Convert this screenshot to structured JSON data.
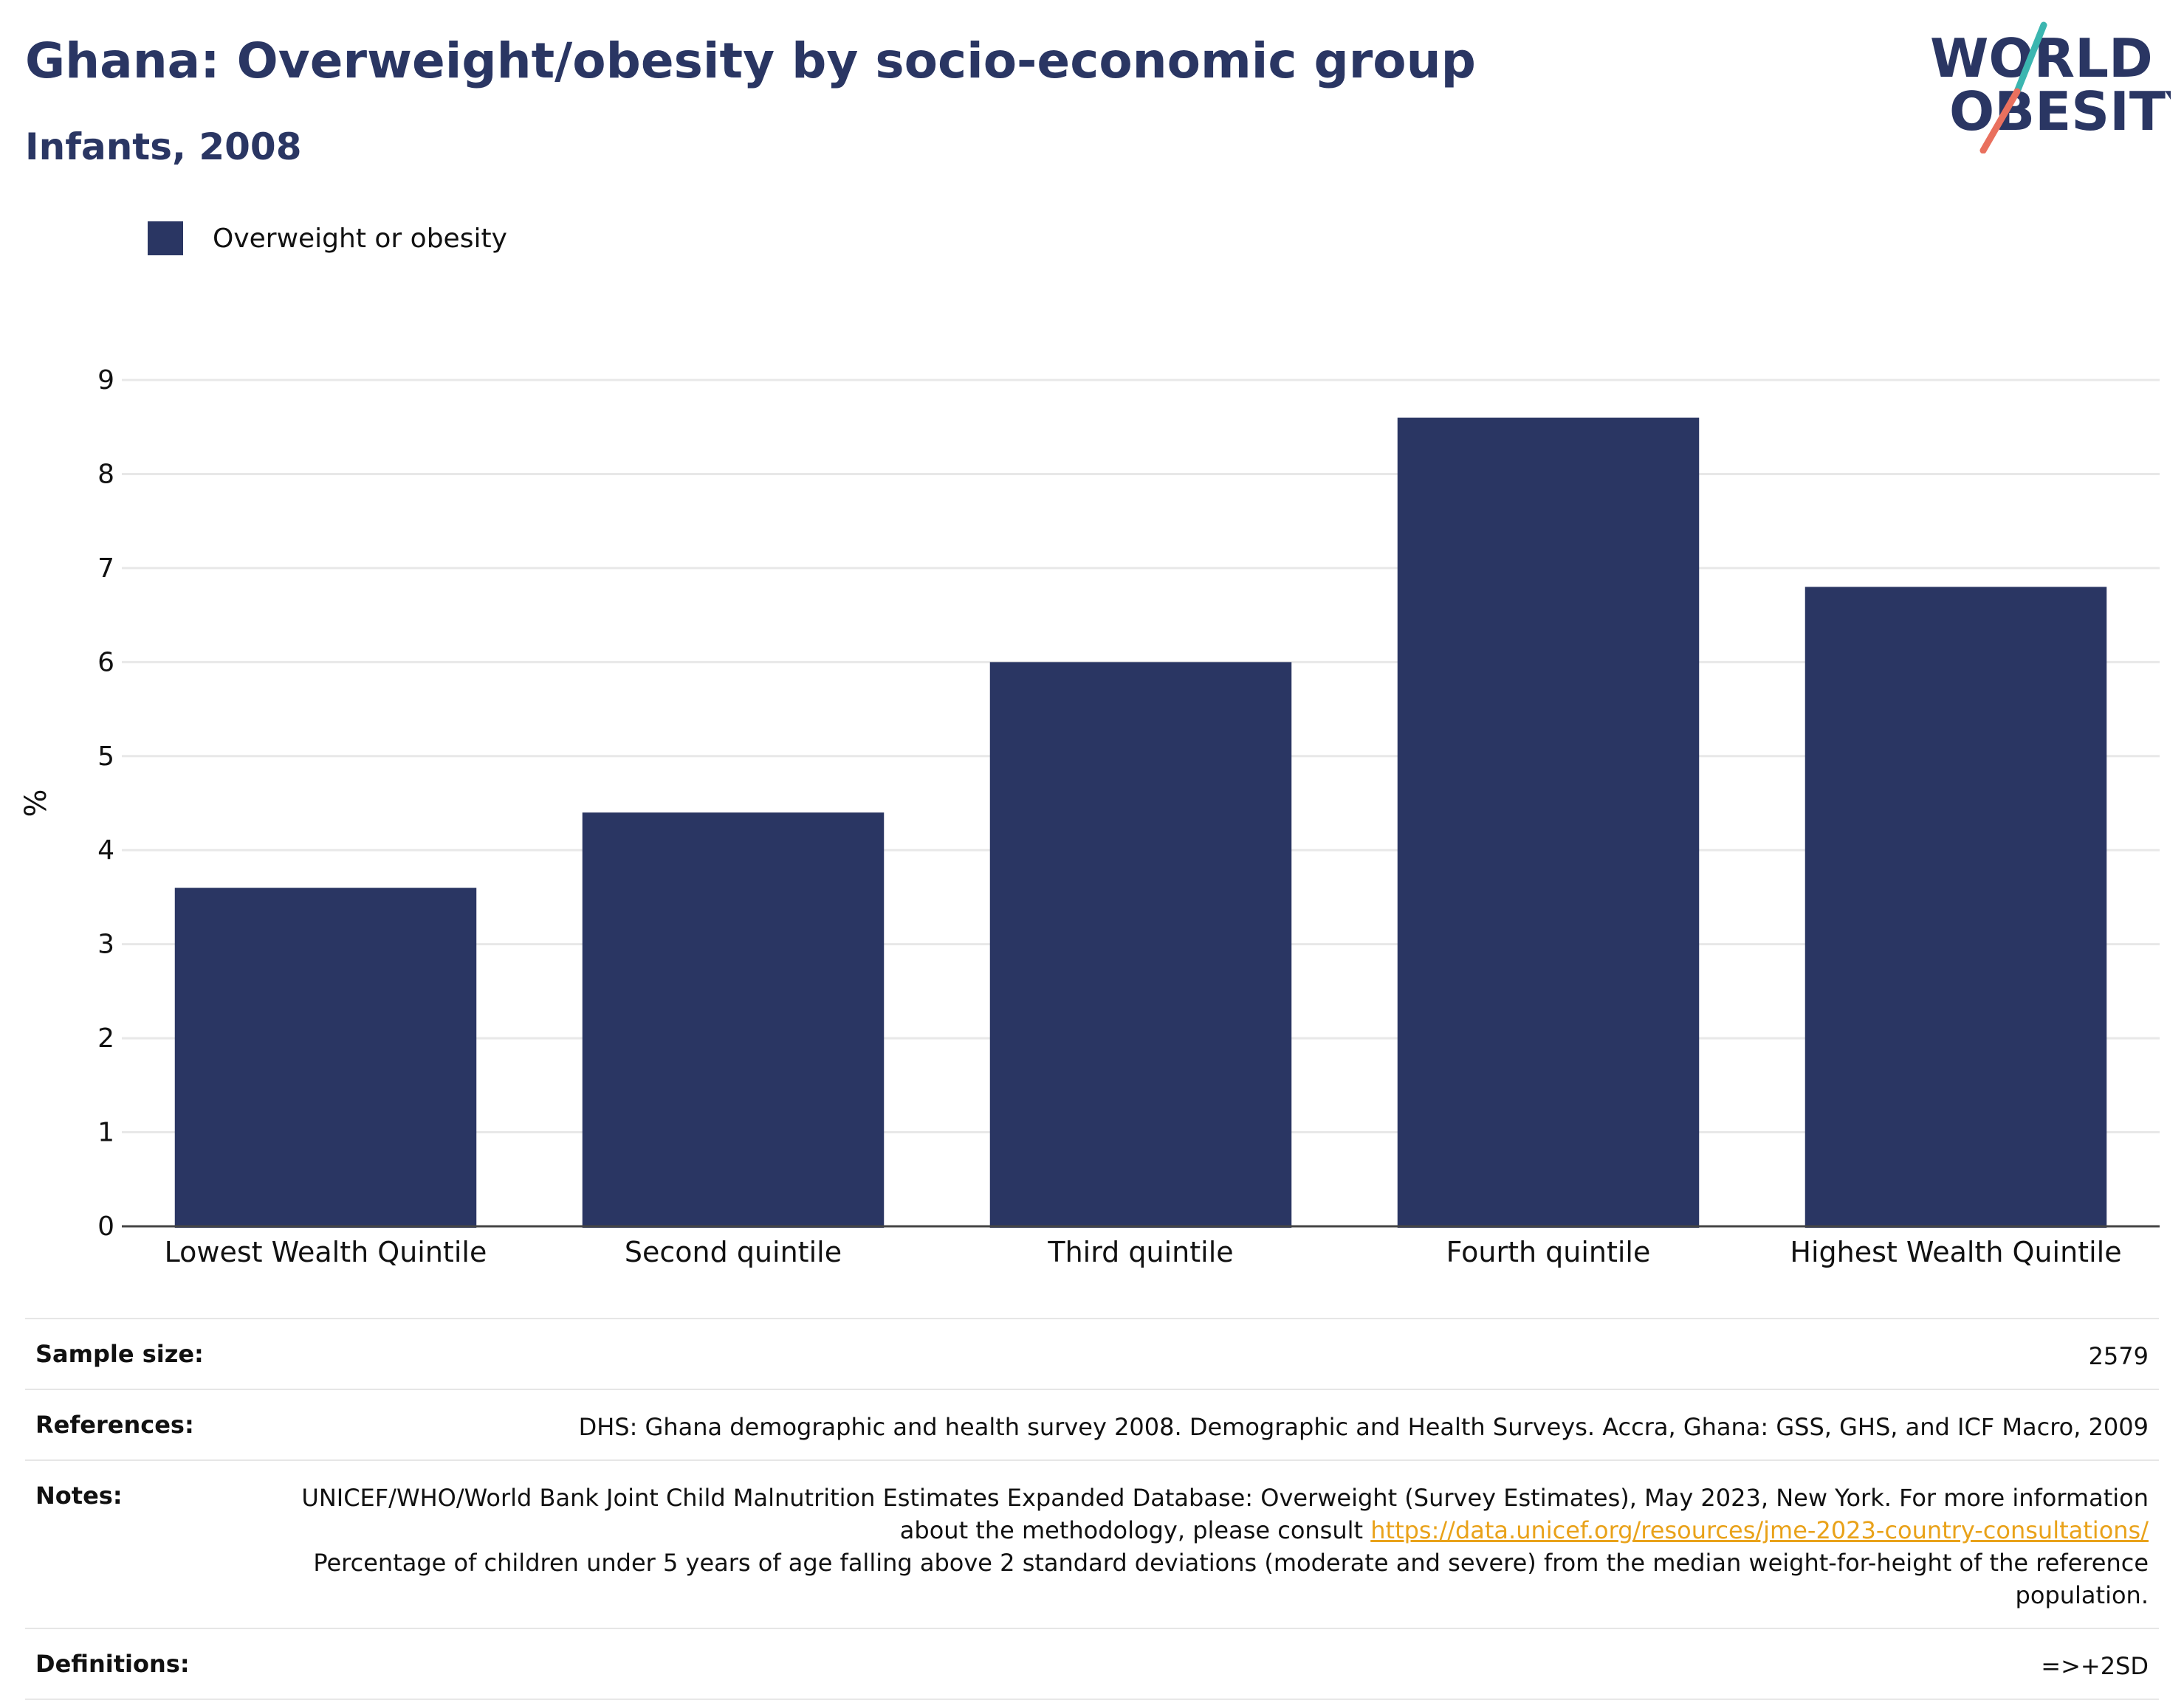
{
  "header": {
    "title": "Ghana: Overweight/obesity by socio-economic group",
    "subtitle": "Infants, 2008"
  },
  "logo": {
    "line1": "WORLD",
    "line2": "OBESITY",
    "colors": {
      "navy": "#2a3663",
      "teal": "#3bb6b0",
      "coral": "#e9705e"
    }
  },
  "legend": {
    "label": "Overweight or obesity",
    "color": "#2a3663"
  },
  "chart_data": {
    "type": "bar",
    "categories": [
      "Lowest Wealth Quintile",
      "Second quintile",
      "Third quintile",
      "Fourth quintile",
      "Highest Wealth Quintile"
    ],
    "series": [
      {
        "name": "Overweight or obesity",
        "values": [
          3.6,
          4.4,
          6.0,
          8.6,
          6.8
        ],
        "color": "#2a3663"
      }
    ],
    "title": "Ghana: Overweight/obesity by socio-economic group",
    "subtitle": "Infants, 2008",
    "xlabel": "",
    "ylabel": "%",
    "ylim": [
      0,
      9
    ],
    "yticks": [
      0,
      1,
      2,
      3,
      4,
      5,
      6,
      7,
      8,
      9
    ],
    "grid": true,
    "legend_position": "top-left"
  },
  "info": {
    "sample_size_label": "Sample size:",
    "sample_size_value": "2579",
    "references_label": "References:",
    "references_value": "DHS: Ghana demographic and health survey 2008. Demographic and Health Surveys. Accra, Ghana: GSS, GHS, and ICF Macro, 2009",
    "notes_label": "Notes:",
    "notes_line1": "UNICEF/WHO/World Bank Joint Child Malnutrition Estimates Expanded Database: Overweight (Survey Estimates), May 2023, New York. For more information about the methodology, please consult",
    "notes_link": "https://data.unicef.org/resources/jme-2023-country-consultations/",
    "notes_line2": "Percentage of children under 5 years of age falling above 2 standard deviations (moderate and severe) from the median weight-for-height of the reference population.",
    "definitions_label": "Definitions:",
    "definitions_value": "=>+2SD"
  }
}
